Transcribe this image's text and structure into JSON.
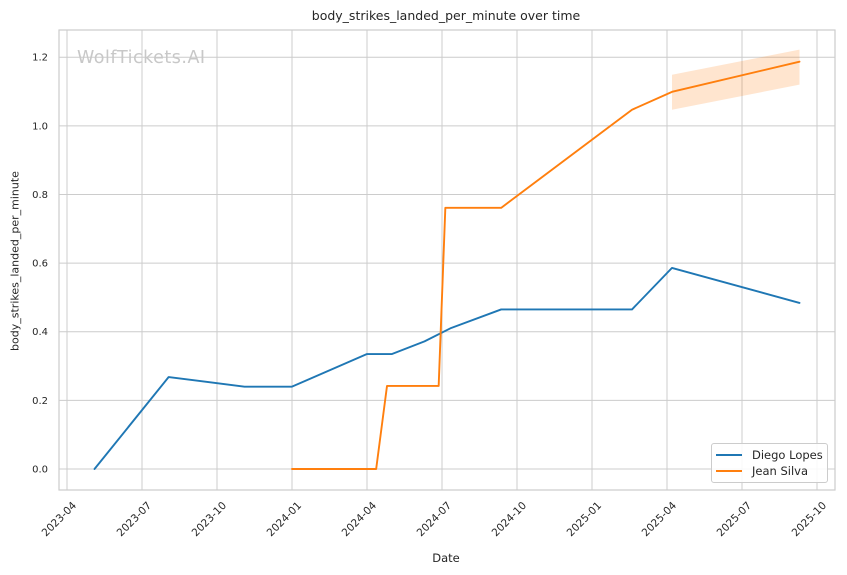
{
  "watermark": {
    "text": "WolfTickets.AI",
    "color": "#c8c8c8"
  },
  "chart_data": {
    "type": "line",
    "title": "body_strikes_landed_per_minute over time",
    "xlabel": "Date",
    "ylabel": "body_strikes_landed_per_minute",
    "grid": true,
    "legend_position": "lower right",
    "background_color": "#ffffff",
    "grid_color": "#cccccc",
    "text_color": "#262626",
    "x_tick_labels": [
      "2023-04",
      "2023-07",
      "2023-10",
      "2024-01",
      "2024-04",
      "2024-07",
      "2024-10",
      "2025-01",
      "2025-04",
      "2025-07",
      "2025-10"
    ],
    "y_ticks": [
      0.0,
      0.2,
      0.4,
      0.6,
      0.8,
      1.0,
      1.2
    ],
    "y_tick_labels": [
      "0.0",
      "0.2",
      "0.4",
      "0.6",
      "0.8",
      "1.0",
      "1.2"
    ],
    "xlim": [
      "2023-03-21",
      "2025-10-22"
    ],
    "ylim": [
      -0.06,
      1.28
    ],
    "series": [
      {
        "name": "Diego Lopes",
        "color": "#1f77b4",
        "points": [
          [
            "2023-05-04",
            0.0
          ],
          [
            "2023-08-03",
            0.268
          ],
          [
            "2023-11-04",
            0.24
          ],
          [
            "2024-01-01",
            0.24
          ],
          [
            "2024-04-01",
            0.335
          ],
          [
            "2024-05-01",
            0.335
          ],
          [
            "2024-06-10",
            0.372
          ],
          [
            "2024-07-12",
            0.411
          ],
          [
            "2024-09-12",
            0.465
          ],
          [
            "2025-02-19",
            0.465
          ],
          [
            "2025-04-07",
            0.586
          ],
          [
            "2025-09-10",
            0.484
          ]
        ]
      },
      {
        "name": "Jean Silva",
        "color": "#ff7f0e",
        "points": [
          [
            "2024-01-01",
            0.0
          ],
          [
            "2024-04-12",
            0.0
          ],
          [
            "2024-04-25",
            0.242
          ],
          [
            "2024-06-27",
            0.242
          ],
          [
            "2024-07-05",
            0.761
          ],
          [
            "2024-09-12",
            0.761
          ],
          [
            "2025-02-19",
            1.047
          ],
          [
            "2025-04-07",
            1.099
          ],
          [
            "2025-09-10",
            1.187
          ]
        ],
        "band": {
          "fill_color": "#ff7f0e",
          "fill_opacity": 0.2,
          "points": [
            [
              "2025-04-07",
              1.047,
              1.149
            ],
            [
              "2025-09-10",
              1.12,
              1.222
            ]
          ]
        }
      }
    ]
  }
}
